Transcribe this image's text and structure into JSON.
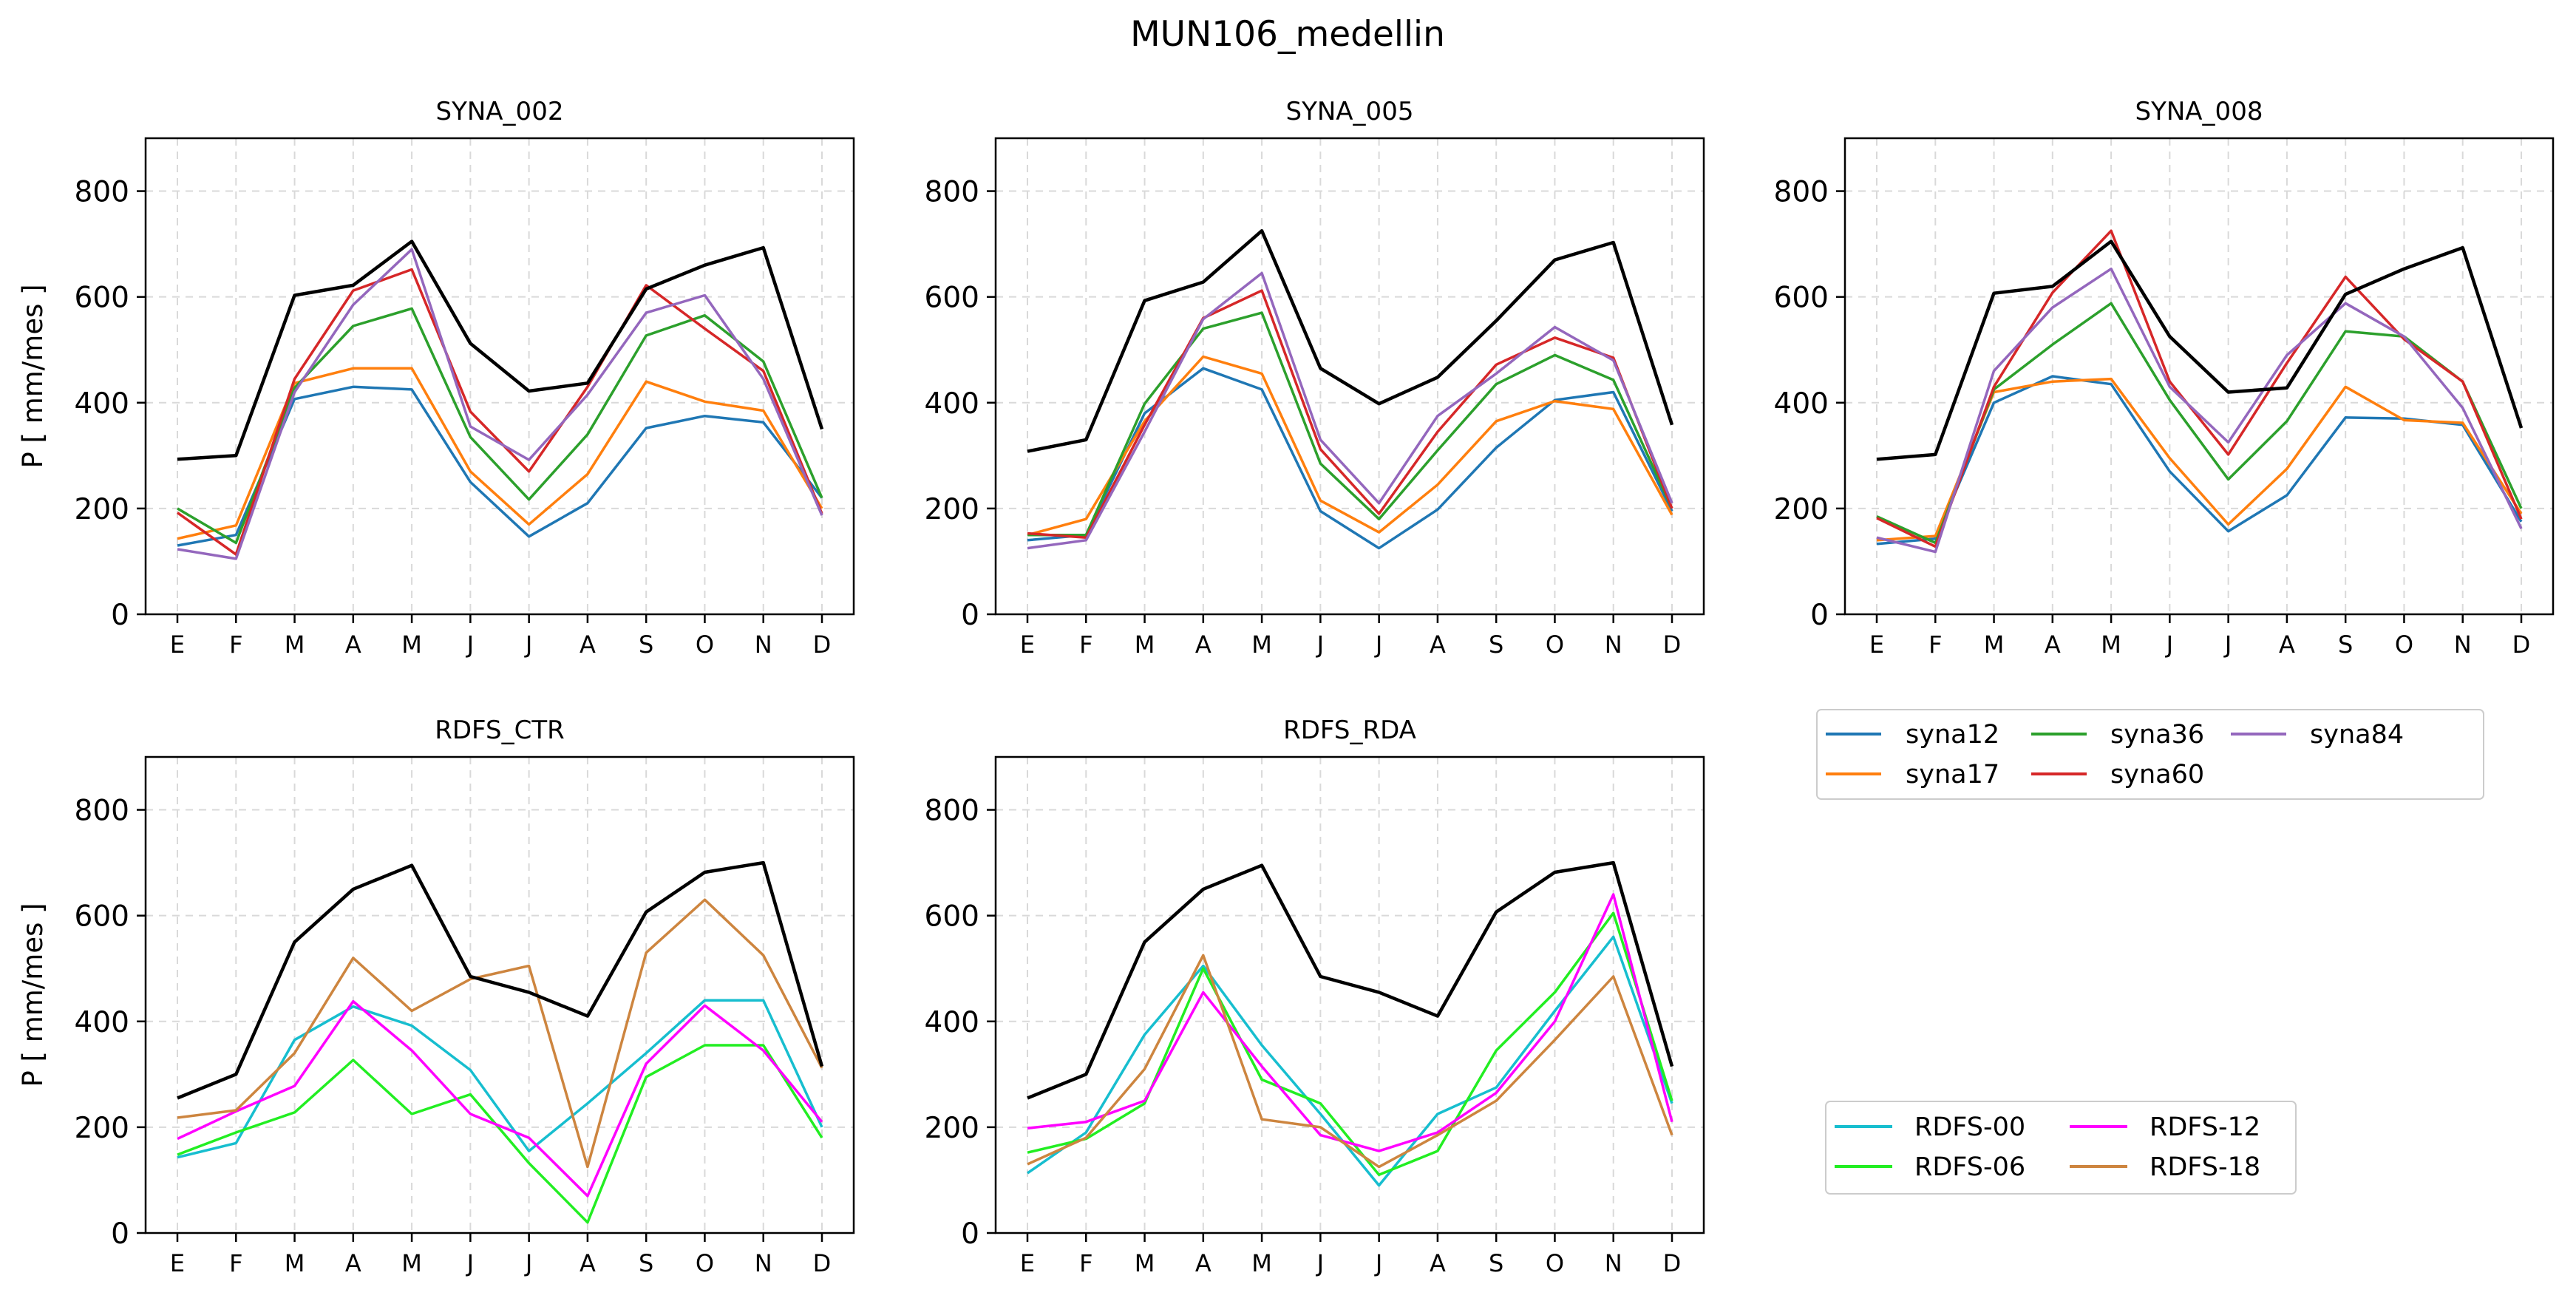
{
  "figure": {
    "suptitle": "MUN106_medellin",
    "ylabel": "P [ mm/mes ]"
  },
  "legends": {
    "syna": [
      {
        "label": "syna12",
        "color": "#1f77b4"
      },
      {
        "label": "syna36",
        "color": "#2ca02c"
      },
      {
        "label": "syna84",
        "color": "#9467bd"
      },
      {
        "label": "syna17",
        "color": "#ff7f0e"
      },
      {
        "label": "syna60",
        "color": "#d62728"
      }
    ],
    "rdfs": [
      {
        "label": "RDFS-00",
        "color": "#17becf"
      },
      {
        "label": "RDFS-12",
        "color": "#ff00ff"
      },
      {
        "label": "RDFS-06",
        "color": "#22ee22"
      },
      {
        "label": "RDFS-18",
        "color": "#cd853f"
      }
    ]
  },
  "chart_data": [
    {
      "type": "line",
      "title": "SYNA_002",
      "categories": [
        "E",
        "F",
        "M",
        "A",
        "M",
        "J",
        "J",
        "A",
        "S",
        "O",
        "N",
        "D"
      ],
      "ylim": [
        0,
        900
      ],
      "yticks": [
        0,
        200,
        400,
        600,
        800
      ],
      "grid": true,
      "series": [
        {
          "color": "#000000",
          "values": [
            293,
            300,
            603,
            622,
            705,
            512,
            422,
            437,
            615,
            660,
            693,
            350
          ]
        },
        {
          "name": "syna12",
          "color": "#1f77b4",
          "values": [
            130,
            150,
            407,
            430,
            425,
            250,
            147,
            210,
            352,
            375,
            363,
            220
          ]
        },
        {
          "name": "syna17",
          "color": "#ff7f0e",
          "values": [
            143,
            168,
            437,
            465,
            465,
            270,
            170,
            265,
            440,
            402,
            385,
            200
          ]
        },
        {
          "name": "syna36",
          "color": "#2ca02c",
          "values": [
            200,
            135,
            428,
            545,
            578,
            335,
            217,
            340,
            527,
            565,
            478,
            220
          ]
        },
        {
          "name": "syna60",
          "color": "#d62728",
          "values": [
            192,
            113,
            445,
            612,
            652,
            383,
            270,
            430,
            622,
            540,
            460,
            190
          ]
        },
        {
          "name": "syna84",
          "color": "#9467bd",
          "values": [
            123,
            105,
            420,
            585,
            690,
            355,
            292,
            415,
            570,
            603,
            445,
            187
          ]
        }
      ]
    },
    {
      "type": "line",
      "title": "SYNA_005",
      "categories": [
        "E",
        "F",
        "M",
        "A",
        "M",
        "J",
        "J",
        "A",
        "S",
        "O",
        "N",
        "D"
      ],
      "ylim": [
        0,
        900
      ],
      "yticks": [
        0,
        200,
        400,
        600,
        800
      ],
      "grid": true,
      "series": [
        {
          "color": "#000000",
          "values": [
            308,
            330,
            593,
            628,
            725,
            465,
            398,
            448,
            555,
            670,
            703,
            358
          ]
        },
        {
          "name": "syna12",
          "color": "#1f77b4",
          "values": [
            140,
            150,
            380,
            465,
            425,
            195,
            125,
            198,
            315,
            405,
            420,
            195
          ]
        },
        {
          "name": "syna17",
          "color": "#ff7f0e",
          "values": [
            150,
            180,
            365,
            487,
            455,
            215,
            155,
            245,
            365,
            403,
            388,
            188
          ]
        },
        {
          "name": "syna36",
          "color": "#2ca02c",
          "values": [
            150,
            150,
            398,
            540,
            570,
            285,
            180,
            310,
            435,
            490,
            443,
            200
          ]
        },
        {
          "name": "syna60",
          "color": "#d62728",
          "values": [
            153,
            145,
            358,
            560,
            612,
            312,
            190,
            345,
            472,
            523,
            485,
            200
          ]
        },
        {
          "name": "syna84",
          "color": "#9467bd",
          "values": [
            125,
            140,
            345,
            558,
            645,
            330,
            210,
            375,
            455,
            543,
            480,
            210
          ]
        }
      ]
    },
    {
      "type": "line",
      "title": "SYNA_008",
      "categories": [
        "E",
        "F",
        "M",
        "A",
        "M",
        "J",
        "J",
        "A",
        "S",
        "O",
        "N",
        "D"
      ],
      "ylim": [
        0,
        900
      ],
      "yticks": [
        0,
        200,
        400,
        600,
        800
      ],
      "grid": true,
      "series": [
        {
          "color": "#000000",
          "values": [
            293,
            302,
            607,
            620,
            705,
            525,
            420,
            428,
            605,
            653,
            693,
            352
          ]
        },
        {
          "name": "syna12",
          "color": "#1f77b4",
          "values": [
            133,
            143,
            400,
            450,
            435,
            270,
            157,
            225,
            372,
            370,
            358,
            175
          ]
        },
        {
          "name": "syna17",
          "color": "#ff7f0e",
          "values": [
            140,
            148,
            420,
            440,
            445,
            295,
            170,
            275,
            430,
            367,
            362,
            190
          ]
        },
        {
          "name": "syna36",
          "color": "#2ca02c",
          "values": [
            185,
            135,
            425,
            510,
            588,
            405,
            255,
            365,
            535,
            525,
            440,
            200
          ]
        },
        {
          "name": "syna60",
          "color": "#d62728",
          "values": [
            182,
            128,
            430,
            608,
            725,
            440,
            302,
            475,
            638,
            520,
            440,
            180
          ]
        },
        {
          "name": "syna84",
          "color": "#9467bd",
          "values": [
            145,
            118,
            460,
            580,
            653,
            430,
            325,
            490,
            588,
            525,
            390,
            162
          ]
        }
      ]
    },
    {
      "type": "line",
      "title": "RDFS_CTR",
      "categories": [
        "E",
        "F",
        "M",
        "A",
        "M",
        "J",
        "J",
        "A",
        "S",
        "O",
        "N",
        "D"
      ],
      "ylim": [
        0,
        900
      ],
      "yticks": [
        0,
        200,
        400,
        600,
        800
      ],
      "grid": true,
      "series": [
        {
          "color": "#000000",
          "values": [
            255,
            300,
            550,
            650,
            695,
            485,
            455,
            410,
            607,
            682,
            700,
            315
          ]
        },
        {
          "name": "RDFS-00",
          "color": "#17becf",
          "values": [
            143,
            170,
            365,
            428,
            392,
            308,
            155,
            245,
            340,
            440,
            440,
            200
          ]
        },
        {
          "name": "RDFS-06",
          "color": "#22ee22",
          "values": [
            148,
            190,
            228,
            327,
            225,
            262,
            132,
            20,
            295,
            355,
            355,
            180
          ]
        },
        {
          "name": "RDFS-12",
          "color": "#ff00ff",
          "values": [
            178,
            230,
            278,
            438,
            345,
            225,
            180,
            70,
            320,
            430,
            345,
            210
          ]
        },
        {
          "name": "RDFS-18",
          "color": "#cd853f",
          "values": [
            218,
            232,
            340,
            520,
            420,
            480,
            505,
            125,
            530,
            630,
            525,
            312
          ]
        }
      ]
    },
    {
      "type": "line",
      "title": "RDFS_RDA",
      "categories": [
        "E",
        "F",
        "M",
        "A",
        "M",
        "J",
        "J",
        "A",
        "S",
        "O",
        "N",
        "D"
      ],
      "ylim": [
        0,
        900
      ],
      "yticks": [
        0,
        200,
        400,
        600,
        800
      ],
      "grid": true,
      "series": [
        {
          "color": "#000000",
          "values": [
            255,
            300,
            550,
            650,
            695,
            485,
            455,
            410,
            607,
            682,
            700,
            315
          ]
        },
        {
          "name": "RDFS-00",
          "color": "#17becf",
          "values": [
            113,
            190,
            375,
            505,
            355,
            225,
            90,
            225,
            275,
            420,
            560,
            245
          ]
        },
        {
          "name": "RDFS-06",
          "color": "#22ee22",
          "values": [
            152,
            178,
            245,
            500,
            290,
            245,
            110,
            155,
            345,
            455,
            605,
            250
          ]
        },
        {
          "name": "RDFS-12",
          "color": "#ff00ff",
          "values": [
            198,
            210,
            250,
            455,
            315,
            185,
            155,
            190,
            265,
            400,
            640,
            210
          ]
        },
        {
          "name": "RDFS-18",
          "color": "#cd853f",
          "values": [
            130,
            180,
            310,
            525,
            215,
            200,
            125,
            185,
            250,
            365,
            485,
            185
          ]
        }
      ]
    }
  ]
}
